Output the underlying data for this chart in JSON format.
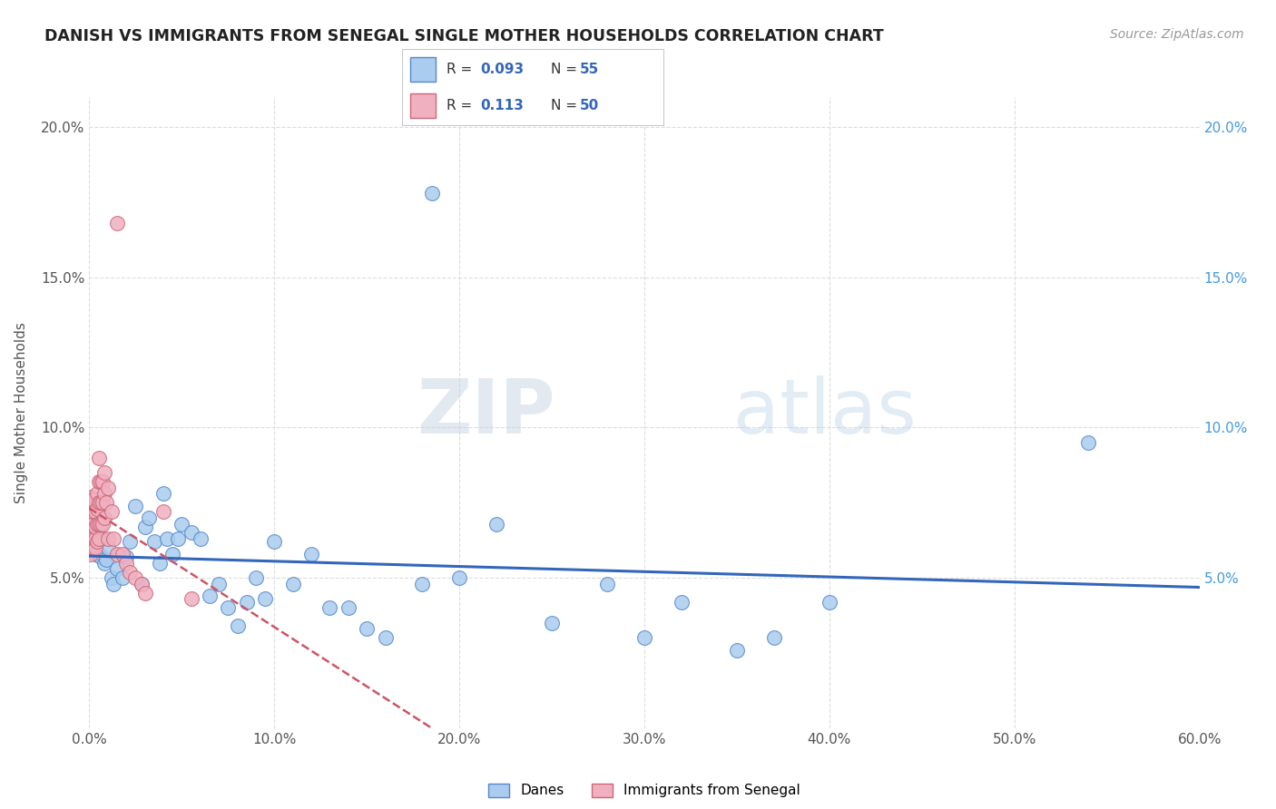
{
  "title": "DANISH VS IMMIGRANTS FROM SENEGAL SINGLE MOTHER HOUSEHOLDS CORRELATION CHART",
  "source": "Source: ZipAtlas.com",
  "ylabel": "Single Mother Households",
  "xlim": [
    0.0,
    0.6
  ],
  "ylim": [
    0.0,
    0.21
  ],
  "xtick_labels": [
    "0.0%",
    "10.0%",
    "20.0%",
    "30.0%",
    "40.0%",
    "50.0%",
    "60.0%"
  ],
  "xtick_vals": [
    0.0,
    0.1,
    0.2,
    0.3,
    0.4,
    0.5,
    0.6
  ],
  "ytick_vals": [
    0.0,
    0.05,
    0.1,
    0.15,
    0.2
  ],
  "ytick_labels_left": [
    "",
    "5.0%",
    "10.0%",
    "15.0%",
    "20.0%"
  ],
  "ytick_vals_right": [
    0.05,
    0.1,
    0.15,
    0.2
  ],
  "ytick_labels_right": [
    "5.0%",
    "10.0%",
    "15.0%",
    "20.0%"
  ],
  "danes_R": "0.093",
  "danes_N": "55",
  "senegal_R": "0.113",
  "senegal_N": "50",
  "danes_color": "#aaccee",
  "danes_edge_color": "#5588cc",
  "senegal_color": "#f0b0c0",
  "senegal_edge_color": "#cc6677",
  "danes_line_color": "#3366bb",
  "senegal_line_color": "#cc5566",
  "watermark": "ZIPatlas",
  "background_color": "#ffffff",
  "grid_color": "#dddddd",
  "danes_x": [
    0.001,
    0.002,
    0.003,
    0.004,
    0.005,
    0.006,
    0.007,
    0.008,
    0.009,
    0.01,
    0.012,
    0.013,
    0.015,
    0.018,
    0.02,
    0.022,
    0.025,
    0.028,
    0.03,
    0.032,
    0.035,
    0.038,
    0.04,
    0.042,
    0.045,
    0.048,
    0.05,
    0.055,
    0.06,
    0.065,
    0.07,
    0.075,
    0.08,
    0.085,
    0.09,
    0.095,
    0.1,
    0.11,
    0.12,
    0.13,
    0.14,
    0.15,
    0.16,
    0.18,
    0.2,
    0.22,
    0.25,
    0.28,
    0.3,
    0.32,
    0.35,
    0.37,
    0.4,
    0.54,
    0.185
  ],
  "danes_y": [
    0.062,
    0.06,
    0.058,
    0.063,
    0.058,
    0.057,
    0.063,
    0.055,
    0.056,
    0.06,
    0.05,
    0.048,
    0.053,
    0.05,
    0.057,
    0.062,
    0.074,
    0.048,
    0.067,
    0.07,
    0.062,
    0.055,
    0.078,
    0.063,
    0.058,
    0.063,
    0.068,
    0.065,
    0.063,
    0.044,
    0.048,
    0.04,
    0.034,
    0.042,
    0.05,
    0.043,
    0.062,
    0.048,
    0.058,
    0.04,
    0.04,
    0.033,
    0.03,
    0.048,
    0.05,
    0.068,
    0.035,
    0.048,
    0.03,
    0.042,
    0.026,
    0.03,
    0.042,
    0.095,
    0.178
  ],
  "senegal_x": [
    0.001,
    0.001,
    0.001,
    0.001,
    0.001,
    0.001,
    0.001,
    0.001,
    0.002,
    0.002,
    0.002,
    0.002,
    0.002,
    0.003,
    0.003,
    0.003,
    0.003,
    0.004,
    0.004,
    0.004,
    0.004,
    0.005,
    0.005,
    0.005,
    0.005,
    0.005,
    0.006,
    0.006,
    0.006,
    0.007,
    0.007,
    0.007,
    0.008,
    0.008,
    0.008,
    0.009,
    0.01,
    0.01,
    0.012,
    0.013,
    0.015,
    0.015,
    0.018,
    0.02,
    0.022,
    0.025,
    0.028,
    0.03,
    0.04,
    0.055
  ],
  "senegal_y": [
    0.058,
    0.06,
    0.063,
    0.065,
    0.067,
    0.07,
    0.073,
    0.077,
    0.06,
    0.063,
    0.068,
    0.072,
    0.076,
    0.06,
    0.063,
    0.067,
    0.072,
    0.062,
    0.068,
    0.073,
    0.078,
    0.063,
    0.068,
    0.075,
    0.082,
    0.09,
    0.068,
    0.075,
    0.082,
    0.068,
    0.075,
    0.082,
    0.07,
    0.078,
    0.085,
    0.075,
    0.063,
    0.08,
    0.072,
    0.063,
    0.058,
    0.168,
    0.058,
    0.055,
    0.052,
    0.05,
    0.048,
    0.045,
    0.072,
    0.043
  ]
}
